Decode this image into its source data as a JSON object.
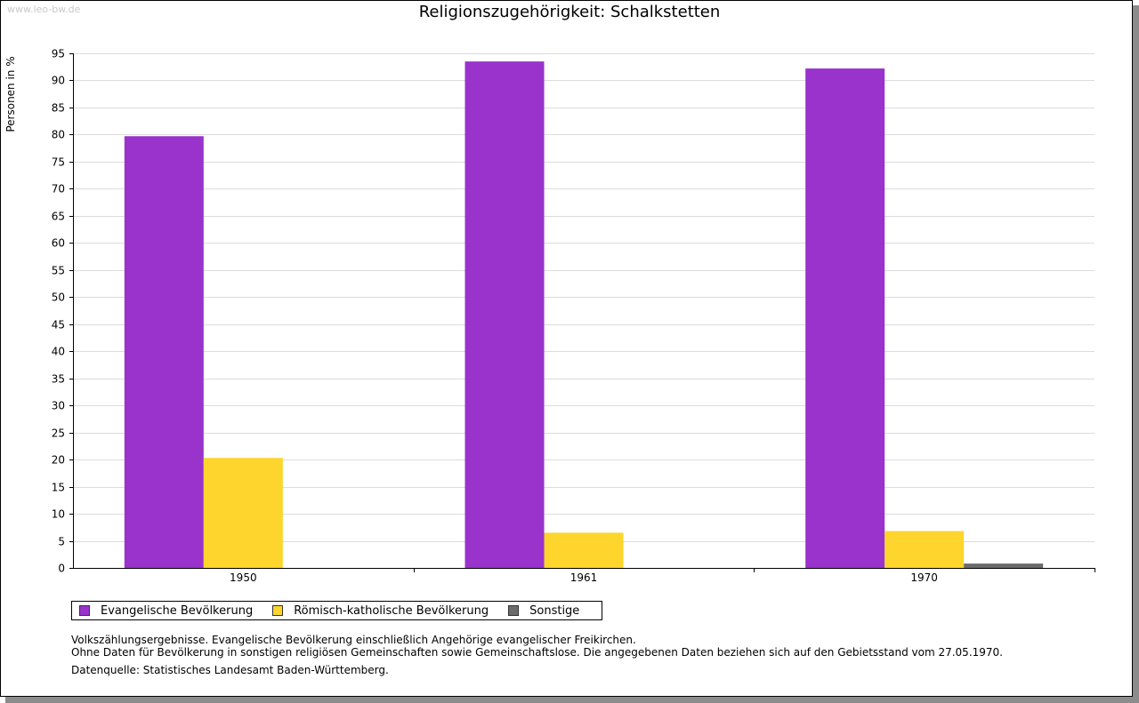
{
  "watermark": "www.leo-bw.de",
  "chart_data": {
    "type": "bar",
    "title": "Religionszugehörigkeit: Schalkstetten",
    "ylabel": "Personen in %",
    "xlabel": "",
    "ylim": [
      0,
      95
    ],
    "yticks": [
      0,
      5,
      10,
      15,
      20,
      25,
      30,
      35,
      40,
      45,
      50,
      55,
      60,
      65,
      70,
      75,
      80,
      85,
      90,
      95
    ],
    "categories": [
      "1950",
      "1961",
      "1970"
    ],
    "grid": true,
    "legend_position": "bottom",
    "series": [
      {
        "name": "Evangelische Bevölkerung",
        "color": "#9933cc",
        "values": [
          79.7,
          93.5,
          92.2
        ]
      },
      {
        "name": "Römisch-katholische Bevölkerung",
        "color": "#fdd52c",
        "values": [
          20.3,
          6.5,
          6.8
        ]
      },
      {
        "name": "Sonstige",
        "color": "#6b6b6b",
        "values": [
          0,
          0,
          0.8
        ]
      }
    ]
  },
  "notes": {
    "line1": "Volkszählungsergebnisse. Evangelische Bevölkerung einschließlich Angehörige evangelischer Freikirchen.",
    "line2": "Ohne Daten für Bevölkerung in sonstigen religiösen Gemeinschaften sowie Gemeinschaftslose. Die angegebenen Daten beziehen sich auf den Gebietsstand vom 27.05.1970.",
    "source": "Datenquelle: Statistisches Landesamt Baden-Württemberg."
  }
}
